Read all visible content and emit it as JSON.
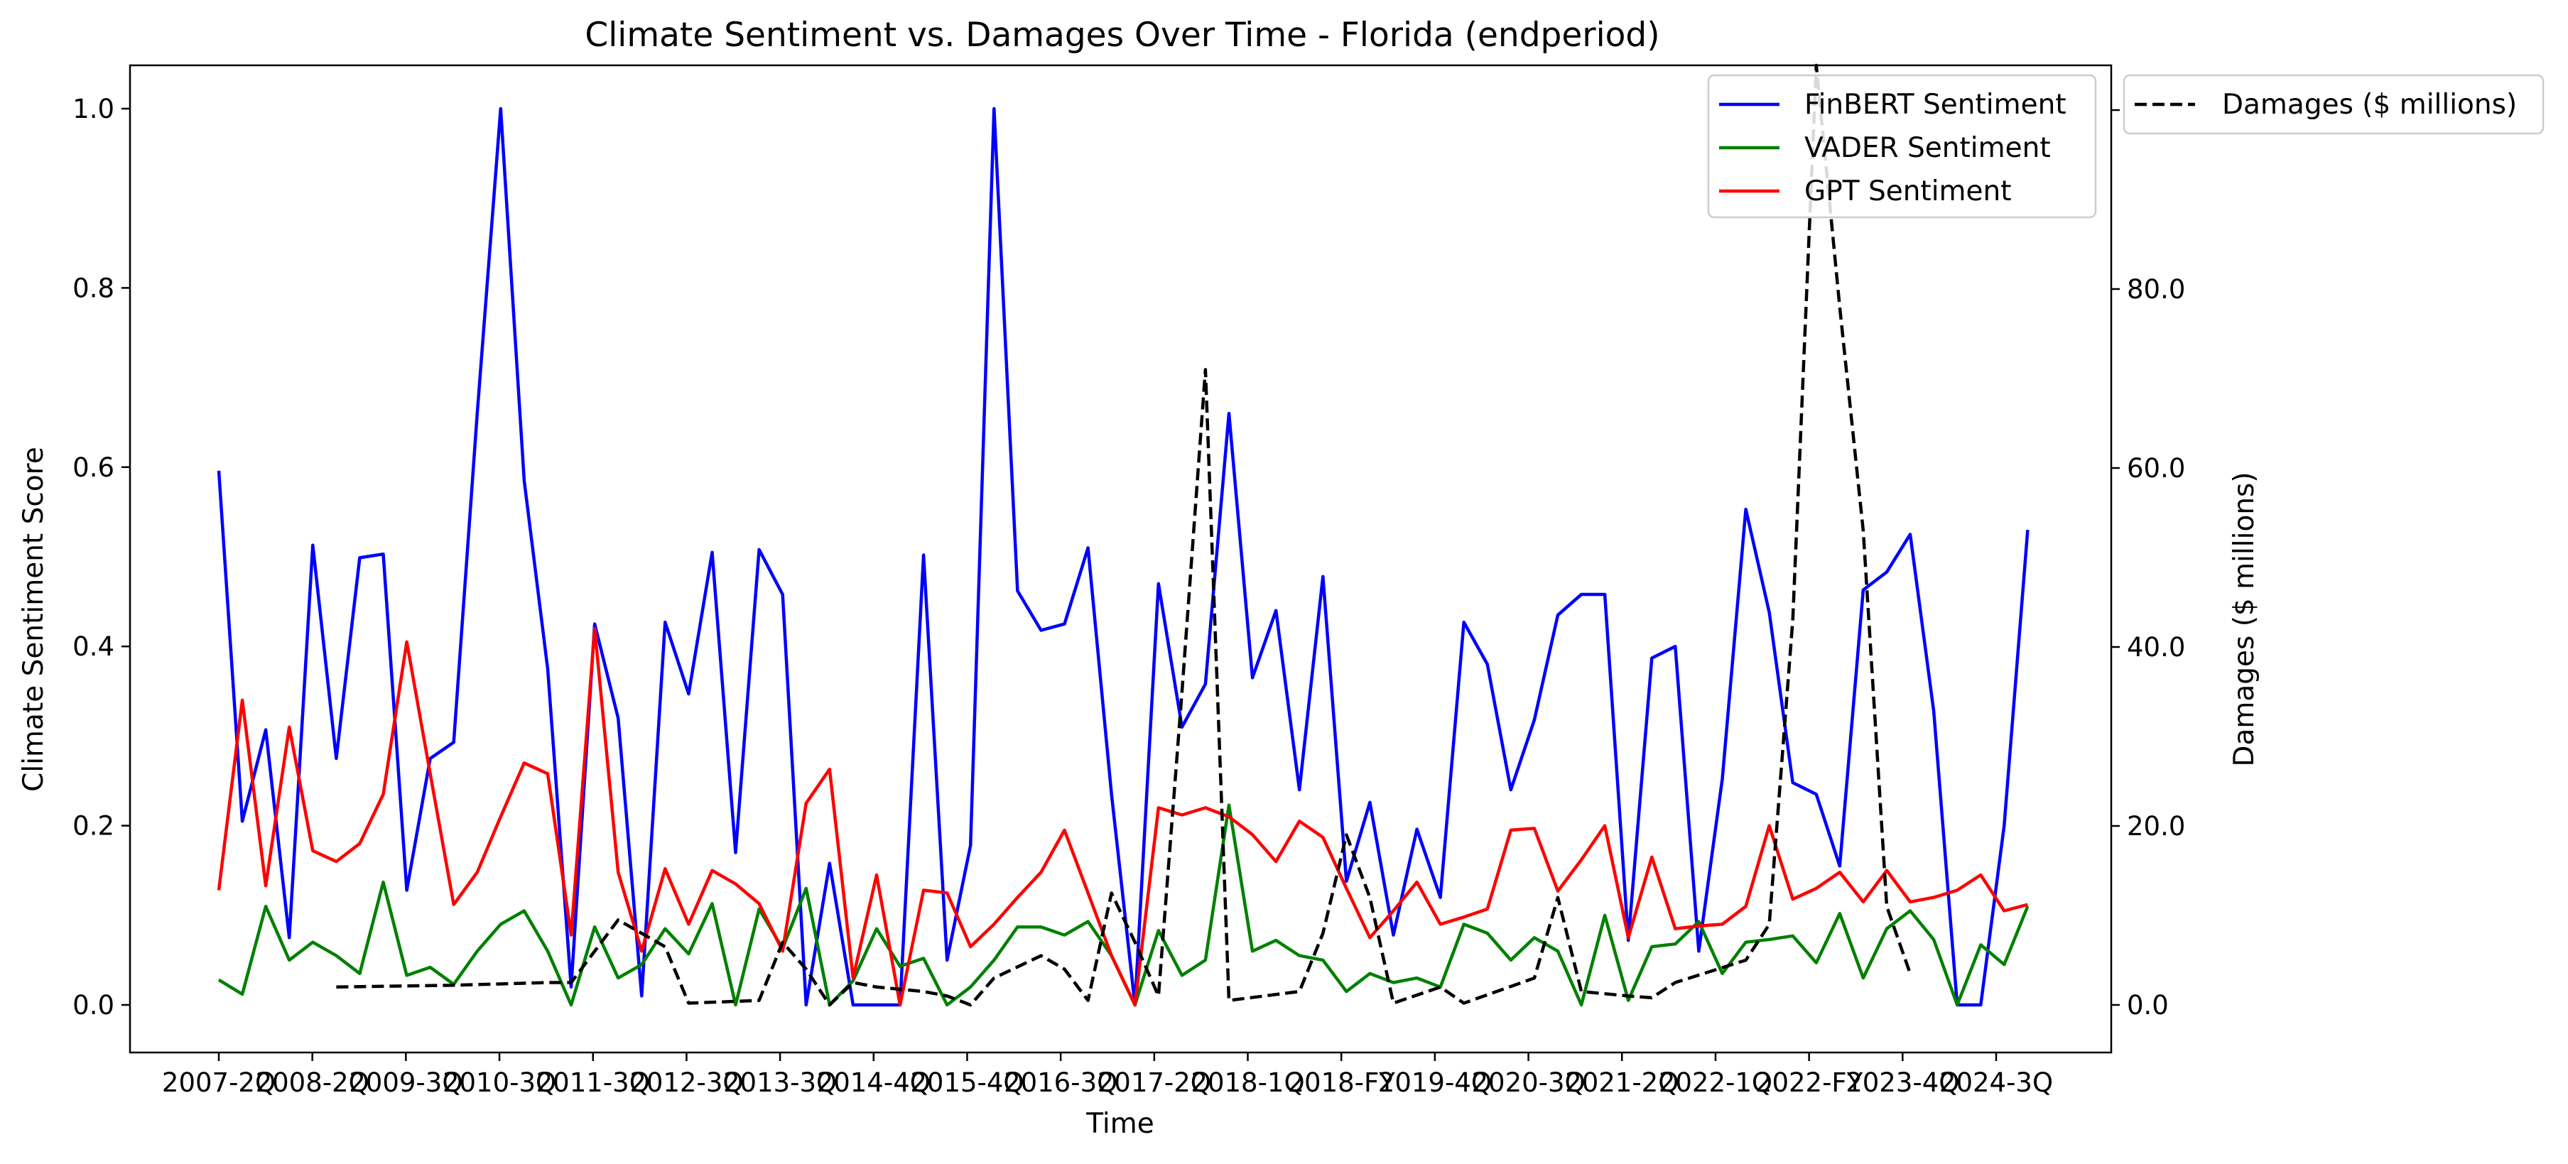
{
  "chart_data": {
    "type": "line",
    "title": "Climate Sentiment vs. Damages Over Time - Florida (endperiod)",
    "xlabel": "Time",
    "ylabel": "Climate Sentiment Score",
    "y2label": "Damages ($ millions)",
    "ylim": [
      -0.05,
      1.05
    ],
    "y2lim": [
      -5,
      106
    ],
    "yticks": [
      "0.0",
      "0.2",
      "0.4",
      "0.6",
      "0.8",
      "1.0"
    ],
    "y2ticks": [
      "0.0",
      "20.0",
      "40.0",
      "60.0",
      "80.0",
      "100.0"
    ],
    "xtick_labels": [
      "2007-2Q",
      "2008-2Q",
      "2009-3Q",
      "2010-3Q",
      "2011-3Q",
      "2012-3Q",
      "2013-3Q",
      "2014-4Q",
      "2015-4Q",
      "2016-3Q",
      "2017-2Q",
      "2018-1Q",
      "2018-FY",
      "2019-4Q",
      "2020-3Q",
      "2021-2Q",
      "2022-1Q",
      "2022-FY",
      "2023-4Q",
      "2024-3Q"
    ],
    "legend": [
      {
        "label": "FinBERT Sentiment",
        "color": "#0000ff"
      },
      {
        "label": "VADER Sentiment",
        "color": "#008000"
      },
      {
        "label": "GPT Sentiment",
        "color": "#ff0000"
      }
    ],
    "legend2": [
      {
        "label": "Damages ($ millions)",
        "color": "#000000"
      }
    ],
    "legend_placement": "top-right",
    "grid": false,
    "series": [
      {
        "name": "FinBERT Sentiment",
        "color": "#0000ff",
        "axis": "left",
        "values": [
          0.596,
          0.205,
          0.307,
          0.075,
          0.513,
          0.275,
          0.499,
          0.503,
          0.128,
          0.275,
          0.293,
          0.66,
          1.0,
          0.585,
          0.375,
          0.02,
          0.425,
          0.32,
          0.01,
          0.427,
          0.347,
          0.505,
          0.17,
          0.508,
          0.458,
          0.0,
          0.158,
          0.0,
          0.0,
          0.0,
          0.502,
          0.05,
          0.178,
          1.0,
          0.462,
          0.418,
          0.425,
          0.51,
          0.235,
          0.0,
          0.47,
          0.31,
          0.358,
          0.66,
          0.365,
          0.44,
          0.24,
          0.478,
          0.138,
          0.226,
          0.078,
          0.196,
          0.12,
          0.427,
          0.38,
          0.24,
          0.318,
          0.435,
          0.458,
          0.458,
          0.072,
          0.387,
          0.4,
          0.06,
          0.252,
          0.553,
          0.438,
          0.248,
          0.235,
          0.155,
          0.463,
          0.483,
          0.525,
          0.328,
          0.0,
          0.0,
          0.2,
          0.53
        ]
      },
      {
        "name": "VADER Sentiment",
        "color": "#008000",
        "axis": "left",
        "values": [
          0.028,
          0.012,
          0.11,
          0.05,
          0.07,
          0.055,
          0.035,
          0.137,
          0.033,
          0.042,
          0.023,
          0.06,
          0.09,
          0.105,
          0.06,
          0.0,
          0.087,
          0.03,
          0.045,
          0.085,
          0.057,
          0.113,
          0.0,
          0.107,
          0.063,
          0.13,
          0.0,
          0.027,
          0.085,
          0.043,
          0.052,
          0.0,
          0.02,
          0.05,
          0.087,
          0.087,
          0.078,
          0.093,
          0.055,
          0.0,
          0.083,
          0.033,
          0.05,
          0.223,
          0.06,
          0.072,
          0.055,
          0.05,
          0.015,
          0.035,
          0.025,
          0.03,
          0.02,
          0.09,
          0.08,
          0.05,
          0.075,
          0.06,
          0.0,
          0.1,
          0.005,
          0.065,
          0.068,
          0.093,
          0.035,
          0.07,
          0.073,
          0.077,
          0.047,
          0.102,
          0.03,
          0.085,
          0.105,
          0.073,
          0.0,
          0.067,
          0.045,
          0.11
        ]
      },
      {
        "name": "GPT Sentiment",
        "color": "#ff0000",
        "axis": "left",
        "values": [
          0.128,
          0.34,
          0.133,
          0.31,
          0.172,
          0.16,
          0.18,
          0.235,
          0.405,
          0.258,
          0.112,
          0.148,
          0.21,
          0.27,
          0.258,
          0.078,
          0.42,
          0.148,
          0.06,
          0.152,
          0.09,
          0.15,
          0.135,
          0.113,
          0.06,
          0.225,
          0.263,
          0.03,
          0.145,
          0.0,
          0.128,
          0.125,
          0.065,
          0.09,
          0.12,
          0.148,
          0.195,
          0.125,
          0.055,
          0.0,
          0.22,
          0.212,
          0.22,
          0.21,
          0.19,
          0.16,
          0.205,
          0.187,
          0.13,
          0.075,
          0.105,
          0.137,
          0.09,
          0.098,
          0.107,
          0.195,
          0.197,
          0.127,
          0.162,
          0.2,
          0.075,
          0.165,
          0.085,
          0.088,
          0.09,
          0.11,
          0.2,
          0.118,
          0.13,
          0.148,
          0.115,
          0.15,
          0.115,
          0.12,
          0.128,
          0.145,
          0.105,
          0.112
        ]
      },
      {
        "name": "Damages ($ millions)",
        "color": "#000000",
        "axis": "right",
        "style": "dashed",
        "points": [
          [
            5,
            2
          ],
          [
            10,
            2.2
          ],
          [
            14,
            2.5
          ],
          [
            15,
            2.5
          ],
          [
            16,
            6
          ],
          [
            17,
            9.5
          ],
          [
            18,
            8
          ],
          [
            19,
            6.5
          ],
          [
            20,
            0.2
          ],
          [
            23,
            0.5
          ],
          [
            24,
            7
          ],
          [
            25,
            4
          ],
          [
            26,
            0
          ],
          [
            27,
            2.5
          ],
          [
            28,
            2
          ],
          [
            30,
            1.5
          ],
          [
            31,
            1
          ],
          [
            32,
            0
          ],
          [
            33,
            3
          ],
          [
            35,
            5.5
          ],
          [
            36,
            4
          ],
          [
            37,
            0.5
          ],
          [
            38,
            12.5
          ],
          [
            39,
            7
          ],
          [
            40,
            1
          ],
          [
            41,
            35
          ],
          [
            42,
            71
          ],
          [
            43,
            0.5
          ],
          [
            46,
            1.5
          ],
          [
            47,
            8
          ],
          [
            48,
            19
          ],
          [
            49,
            12
          ],
          [
            50,
            0.2
          ],
          [
            52,
            2
          ],
          [
            53,
            0.2
          ],
          [
            56,
            3
          ],
          [
            57,
            12
          ],
          [
            58,
            1.5
          ],
          [
            60,
            1
          ],
          [
            61,
            0.8
          ],
          [
            62,
            2.5
          ],
          [
            65,
            5
          ],
          [
            66,
            9
          ],
          [
            67,
            43
          ],
          [
            68,
            105
          ],
          [
            69,
            78
          ],
          [
            70,
            53
          ],
          [
            71,
            11
          ],
          [
            72,
            3.5
          ]
        ]
      }
    ]
  }
}
